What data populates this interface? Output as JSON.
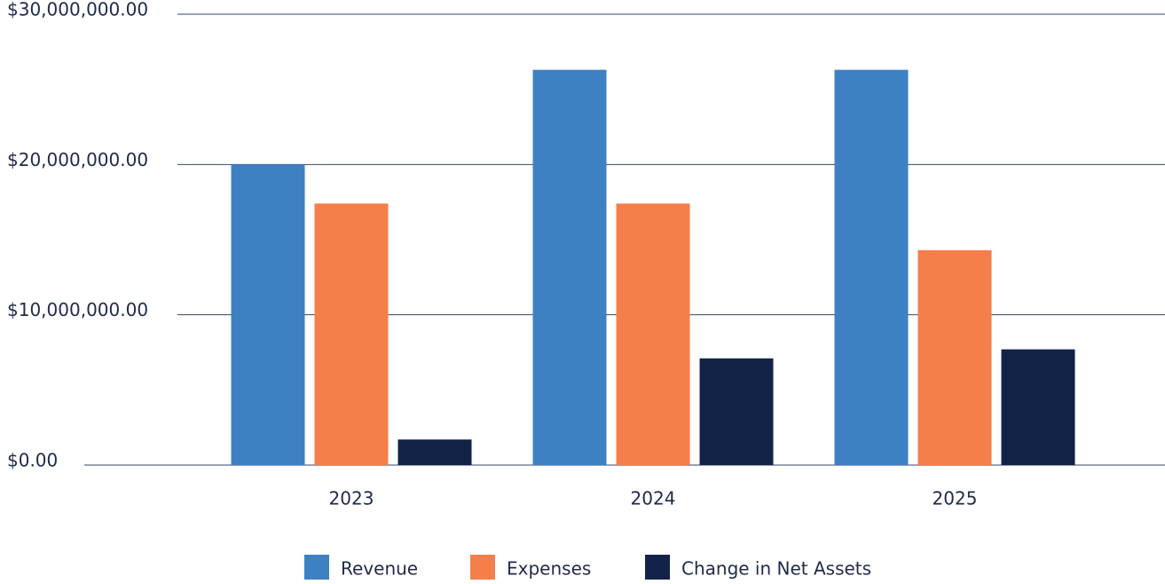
{
  "chart_data": {
    "type": "bar",
    "categories": [
      "2023",
      "2024",
      "2025"
    ],
    "series": [
      {
        "name": "Revenue",
        "color": "#3d81c3",
        "values": [
          20000000,
          26300000,
          26300000
        ]
      },
      {
        "name": "Expenses",
        "color": "#f47f4a",
        "values": [
          17400000,
          17400000,
          14300000
        ]
      },
      {
        "name": "Change in Net Assets",
        "color": "#132348",
        "values": [
          1700000,
          7100000,
          7700000
        ]
      }
    ],
    "ylim": [
      0,
      30000000
    ],
    "yticks": [
      {
        "value": 0,
        "label": "$0.00"
      },
      {
        "value": 10000000,
        "label": "$10,000,000.00"
      },
      {
        "value": 20000000,
        "label": "$20,000,000.00"
      },
      {
        "value": 30000000,
        "label": "$30,000,000.00"
      }
    ],
    "grid": true,
    "legend": "bottom"
  }
}
